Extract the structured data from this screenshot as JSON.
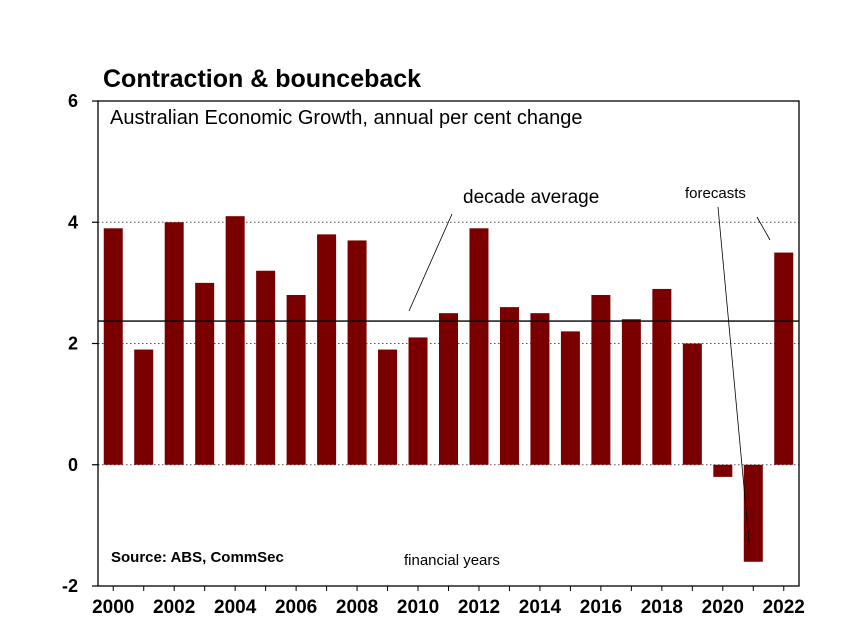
{
  "chart_data": {
    "type": "bar",
    "title": "Contraction & bounceback",
    "subtitle": "Australian Economic Growth, annual per cent change",
    "xlabel": "financial years",
    "ylabel": "",
    "source": "Source: ABS, CommSec",
    "categories": [
      "2000",
      "2001",
      "2002",
      "2003",
      "2004",
      "2005",
      "2006",
      "2007",
      "2008",
      "2009",
      "2010",
      "2011",
      "2012",
      "2013",
      "2014",
      "2015",
      "2016",
      "2017",
      "2018",
      "2019",
      "2020",
      "2021",
      "2022"
    ],
    "x_tick_labels": [
      "2000",
      "2002",
      "2004",
      "2006",
      "2008",
      "2010",
      "2012",
      "2014",
      "2016",
      "2018",
      "2020",
      "2022"
    ],
    "values": [
      3.9,
      1.9,
      4.0,
      3.0,
      4.1,
      3.2,
      2.8,
      3.8,
      3.7,
      1.9,
      2.1,
      2.5,
      3.9,
      2.6,
      2.5,
      2.2,
      2.8,
      2.4,
      2.9,
      2.0,
      -0.2,
      -1.6,
      3.5
    ],
    "ylim": [
      -2,
      6
    ],
    "y_ticks": [
      "-2",
      "0",
      "2",
      "4",
      "6"
    ],
    "bar_color": "#7a0000",
    "average_line": {
      "value": 2.37,
      "label": "decade average"
    },
    "forecast_label": "forecasts",
    "grid": "dotted horizontal at 0, 2, 4"
  }
}
